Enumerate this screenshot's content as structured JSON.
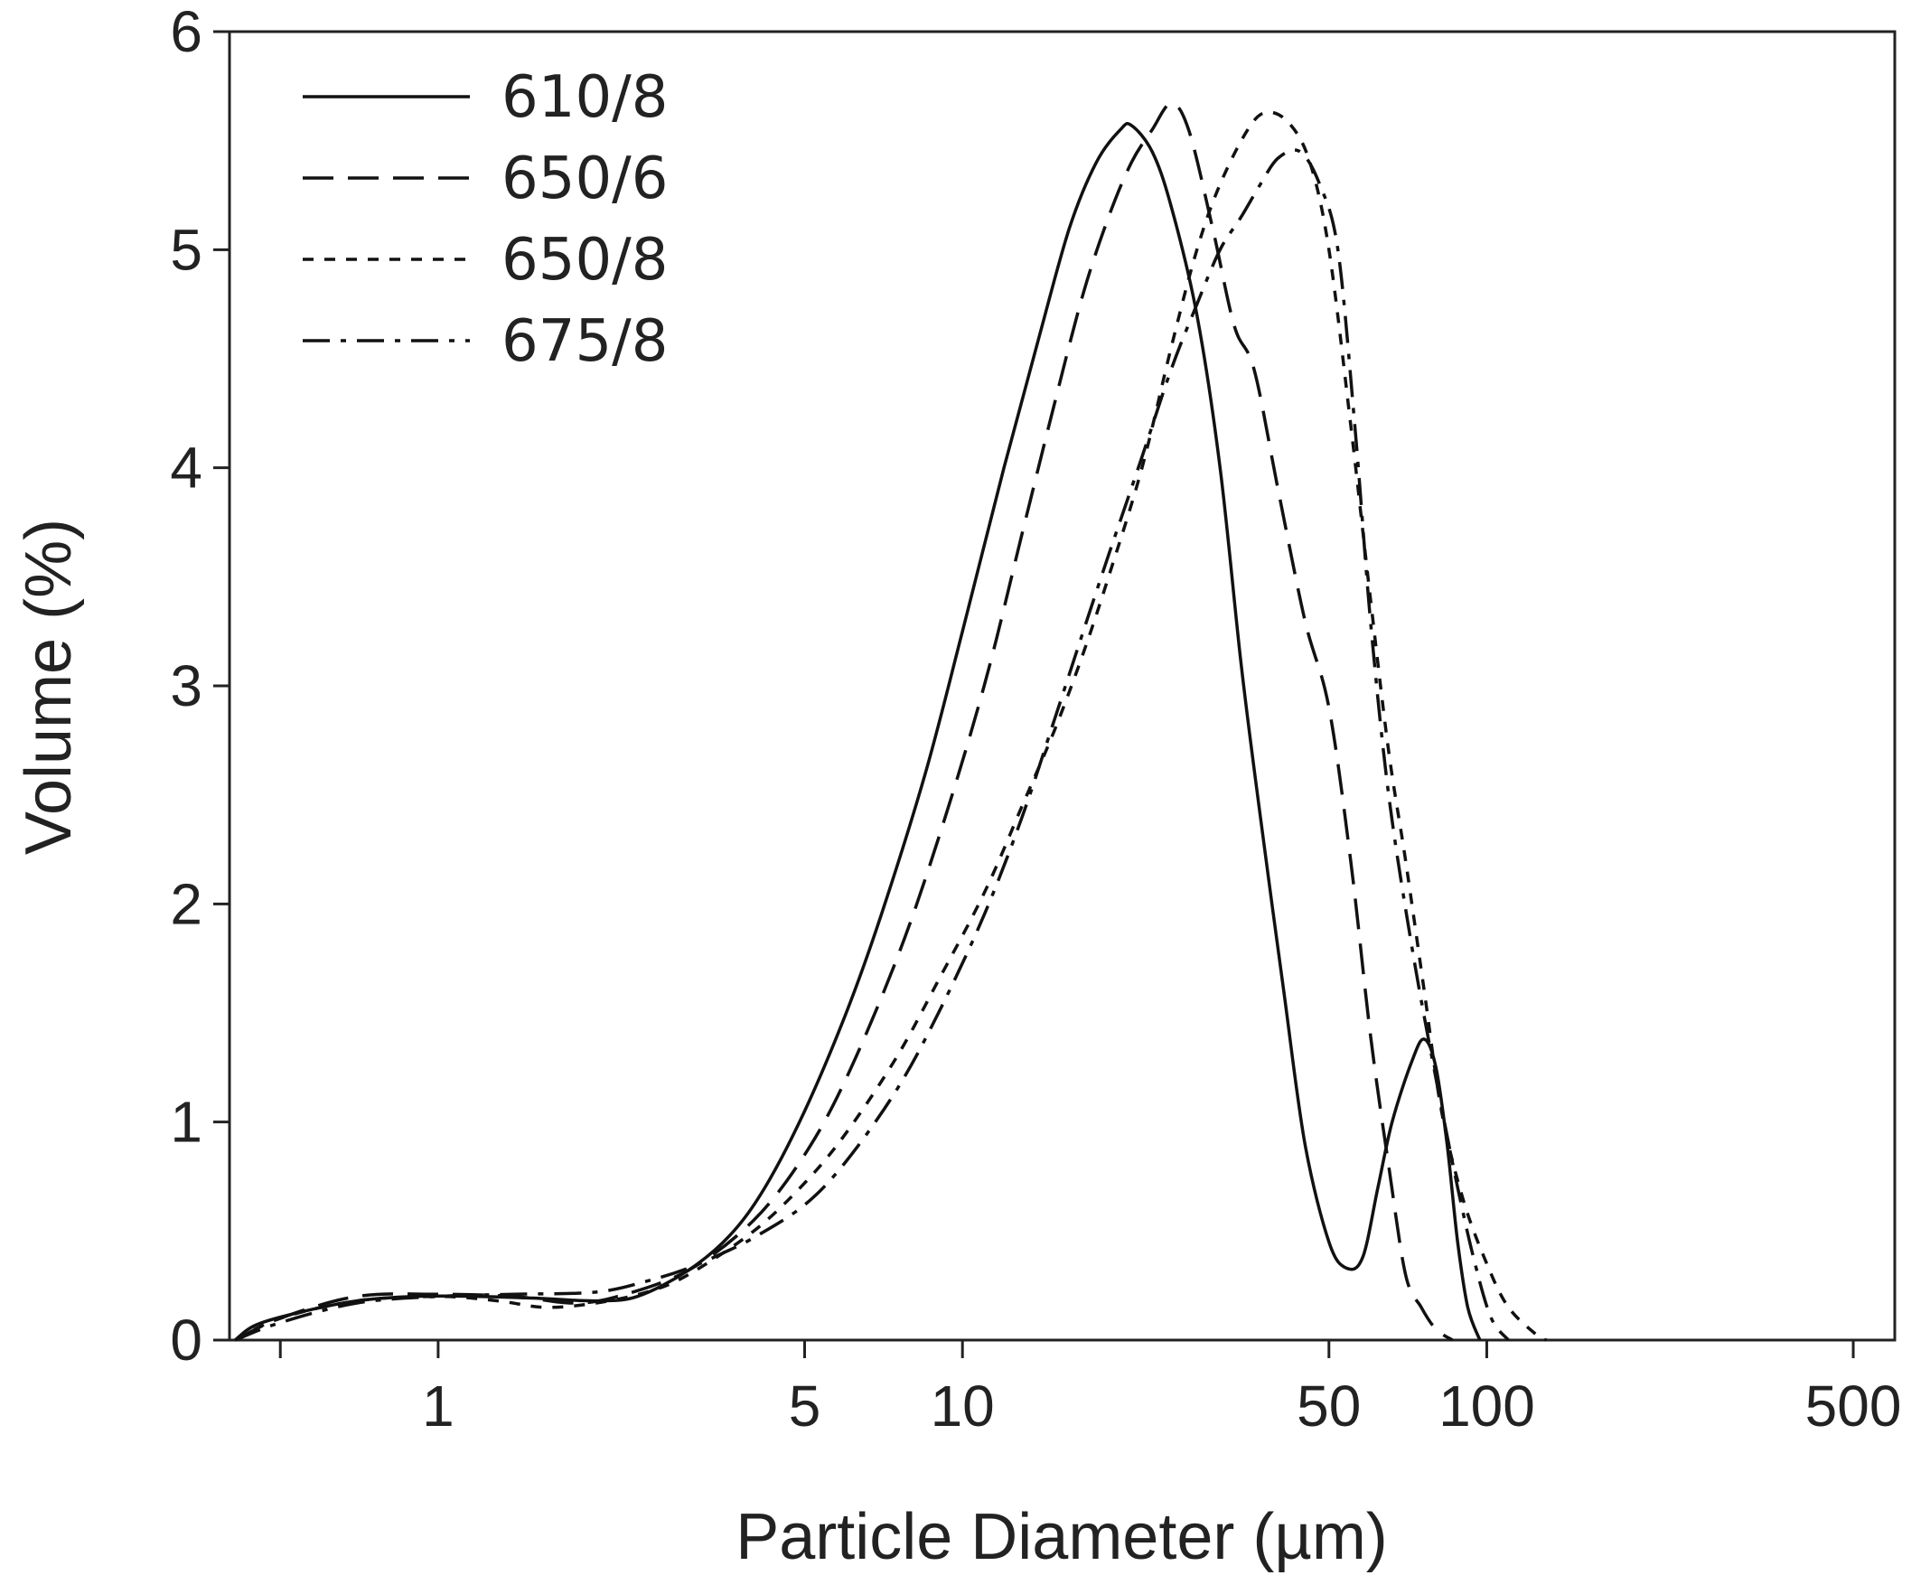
{
  "chart_data": {
    "type": "line",
    "title": "",
    "xlabel": "Particle Diameter (µm)",
    "ylabel": "Volume (%)",
    "x_scale": "log",
    "xlim": [
      0.4,
      600
    ],
    "ylim": [
      0,
      6
    ],
    "x_ticks": [
      1,
      5,
      10,
      50,
      100,
      500
    ],
    "x_tick_labels": [
      "1",
      "5",
      "10",
      "50",
      "100",
      "500"
    ],
    "x_minor_ticks": [
      0.5
    ],
    "y_ticks": [
      0,
      1,
      2,
      3,
      4,
      5,
      6
    ],
    "y_tick_labels": [
      "0",
      "1",
      "2",
      "3",
      "4",
      "5",
      "6"
    ],
    "grid": false,
    "legend_position": "top-left",
    "color": "#111111",
    "series": [
      {
        "name": "610/8",
        "style": "solid",
        "points": [
          [
            0.41,
            0.0
          ],
          [
            0.45,
            0.07
          ],
          [
            0.55,
            0.13
          ],
          [
            0.7,
            0.18
          ],
          [
            0.9,
            0.2
          ],
          [
            1.2,
            0.2
          ],
          [
            1.6,
            0.19
          ],
          [
            2.0,
            0.18
          ],
          [
            2.4,
            0.2
          ],
          [
            3.0,
            0.32
          ],
          [
            3.6,
            0.48
          ],
          [
            4.2,
            0.7
          ],
          [
            5.0,
            1.05
          ],
          [
            6.0,
            1.5
          ],
          [
            7.0,
            1.95
          ],
          [
            8.5,
            2.6
          ],
          [
            10.0,
            3.25
          ],
          [
            12.0,
            4.0
          ],
          [
            14.0,
            4.6
          ],
          [
            16.0,
            5.1
          ],
          [
            18.0,
            5.4
          ],
          [
            20.0,
            5.55
          ],
          [
            21.0,
            5.57
          ],
          [
            23.0,
            5.45
          ],
          [
            25.0,
            5.2
          ],
          [
            28.0,
            4.7
          ],
          [
            31.0,
            4.0
          ],
          [
            34.0,
            3.1
          ],
          [
            37.0,
            2.4
          ],
          [
            41.0,
            1.6
          ],
          [
            45.0,
            0.9
          ],
          [
            50.0,
            0.45
          ],
          [
            54.0,
            0.33
          ],
          [
            58.0,
            0.38
          ],
          [
            62.0,
            0.7
          ],
          [
            66.0,
            1.0
          ],
          [
            72.0,
            1.28
          ],
          [
            76.0,
            1.38
          ],
          [
            80.0,
            1.25
          ],
          [
            84.0,
            0.9
          ],
          [
            88.0,
            0.45
          ],
          [
            92.0,
            0.15
          ],
          [
            97.0,
            0.0
          ]
        ]
      },
      {
        "name": "650/6",
        "style": "long-dash",
        "points": [
          [
            0.41,
            0.0
          ],
          [
            0.5,
            0.1
          ],
          [
            0.7,
            0.2
          ],
          [
            1.0,
            0.21
          ],
          [
            1.4,
            0.2
          ],
          [
            1.8,
            0.17
          ],
          [
            2.2,
            0.2
          ],
          [
            3.0,
            0.32
          ],
          [
            4.0,
            0.55
          ],
          [
            5.0,
            0.85
          ],
          [
            6.0,
            1.2
          ],
          [
            7.5,
            1.75
          ],
          [
            9.0,
            2.3
          ],
          [
            11.0,
            3.0
          ],
          [
            13.0,
            3.7
          ],
          [
            15.0,
            4.3
          ],
          [
            17.0,
            4.8
          ],
          [
            19.0,
            5.15
          ],
          [
            21.0,
            5.4
          ],
          [
            23.0,
            5.55
          ],
          [
            25.0,
            5.67
          ],
          [
            27.0,
            5.55
          ],
          [
            30.0,
            5.1
          ],
          [
            33.0,
            4.65
          ],
          [
            36.0,
            4.45
          ],
          [
            40.0,
            3.9
          ],
          [
            45.0,
            3.3
          ],
          [
            50.0,
            2.9
          ],
          [
            55.0,
            2.2
          ],
          [
            60.0,
            1.4
          ],
          [
            65.0,
            0.8
          ],
          [
            70.0,
            0.3
          ],
          [
            75.0,
            0.15
          ],
          [
            80.0,
            0.05
          ],
          [
            86.0,
            0.0
          ]
        ]
      },
      {
        "name": "650/8",
        "style": "short-dash",
        "points": [
          [
            0.41,
            0.0
          ],
          [
            0.5,
            0.1
          ],
          [
            0.7,
            0.18
          ],
          [
            1.0,
            0.2
          ],
          [
            1.3,
            0.18
          ],
          [
            1.6,
            0.15
          ],
          [
            2.0,
            0.17
          ],
          [
            2.5,
            0.22
          ],
          [
            3.0,
            0.3
          ],
          [
            4.0,
            0.5
          ],
          [
            5.0,
            0.72
          ],
          [
            6.0,
            0.95
          ],
          [
            7.5,
            1.3
          ],
          [
            9.0,
            1.65
          ],
          [
            11.0,
            2.05
          ],
          [
            13.0,
            2.45
          ],
          [
            15.0,
            2.8
          ],
          [
            17.0,
            3.15
          ],
          [
            19.0,
            3.5
          ],
          [
            22.0,
            4.0
          ],
          [
            25.0,
            4.55
          ],
          [
            28.0,
            5.0
          ],
          [
            31.0,
            5.3
          ],
          [
            35.0,
            5.55
          ],
          [
            38.0,
            5.63
          ],
          [
            42.0,
            5.58
          ],
          [
            46.0,
            5.4
          ],
          [
            50.0,
            5.0
          ],
          [
            55.0,
            4.2
          ],
          [
            60.0,
            3.4
          ],
          [
            65.0,
            2.7
          ],
          [
            70.0,
            2.2
          ],
          [
            76.0,
            1.6
          ],
          [
            82.0,
            1.05
          ],
          [
            90.0,
            0.65
          ],
          [
            100.0,
            0.35
          ],
          [
            110.0,
            0.15
          ],
          [
            125.0,
            0.02
          ],
          [
            130.0,
            0.0
          ]
        ]
      },
      {
        "name": "675/8",
        "style": "dash-dot",
        "points": [
          [
            0.41,
            0.0
          ],
          [
            0.5,
            0.08
          ],
          [
            0.7,
            0.17
          ],
          [
            1.0,
            0.2
          ],
          [
            1.4,
            0.21
          ],
          [
            2.0,
            0.22
          ],
          [
            2.5,
            0.27
          ],
          [
            3.0,
            0.33
          ],
          [
            3.5,
            0.4
          ],
          [
            4.0,
            0.47
          ],
          [
            5.0,
            0.62
          ],
          [
            6.0,
            0.82
          ],
          [
            7.5,
            1.15
          ],
          [
            9.0,
            1.5
          ],
          [
            11.0,
            1.95
          ],
          [
            13.0,
            2.4
          ],
          [
            15.0,
            2.85
          ],
          [
            17.0,
            3.25
          ],
          [
            19.0,
            3.6
          ],
          [
            22.0,
            4.05
          ],
          [
            25.0,
            4.45
          ],
          [
            28.0,
            4.75
          ],
          [
            31.0,
            5.0
          ],
          [
            34.0,
            5.15
          ],
          [
            37.0,
            5.3
          ],
          [
            40.0,
            5.42
          ],
          [
            44.0,
            5.45
          ],
          [
            48.0,
            5.3
          ],
          [
            52.0,
            5.0
          ],
          [
            56.0,
            4.2
          ],
          [
            60.0,
            3.3
          ],
          [
            65.0,
            2.5
          ],
          [
            72.0,
            1.8
          ],
          [
            80.0,
            1.2
          ],
          [
            88.0,
            0.7
          ],
          [
            95.0,
            0.35
          ],
          [
            102.0,
            0.1
          ],
          [
            110.0,
            0.0
          ]
        ]
      }
    ]
  }
}
